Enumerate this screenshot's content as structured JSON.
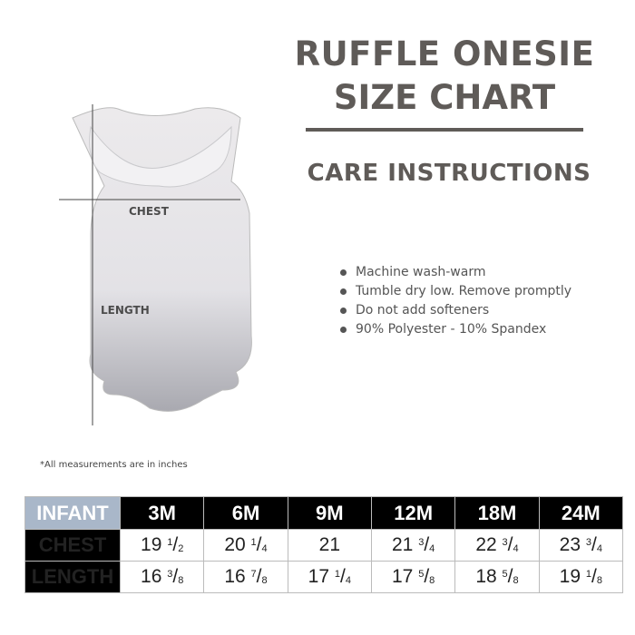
{
  "header": {
    "title_line1": "RUFFLE ONESIE",
    "title_line2": "SIZE CHART",
    "care_heading": "CARE INSTRUCTIONS"
  },
  "care_items": [
    "Machine wash-warm",
    "Tumble dry low. Remove promptly",
    "Do not add softeners",
    "90% Polyester - 10% Spandex"
  ],
  "garment": {
    "chest_label": "CHEST",
    "length_label": "LENGTH"
  },
  "note": "*All measurements are in inches",
  "table": {
    "corner": "INFANT",
    "sizes": [
      "3M",
      "6M",
      "9M",
      "12M",
      "18M",
      "24M"
    ],
    "rows": [
      {
        "label": "CHEST",
        "values": [
          {
            "whole": "19",
            "num": "1",
            "den": "2"
          },
          {
            "whole": "20",
            "num": "1",
            "den": "4"
          },
          {
            "whole": "21",
            "num": "",
            "den": ""
          },
          {
            "whole": "21",
            "num": "3",
            "den": "4"
          },
          {
            "whole": "22",
            "num": "3",
            "den": "4"
          },
          {
            "whole": "23",
            "num": "3",
            "den": "4"
          }
        ]
      },
      {
        "label": "LENGTH",
        "values": [
          {
            "whole": "16",
            "num": "3",
            "den": "8"
          },
          {
            "whole": "16",
            "num": "7",
            "den": "8"
          },
          {
            "whole": "17",
            "num": "1",
            "den": "4"
          },
          {
            "whole": "17",
            "num": "5",
            "den": "8"
          },
          {
            "whole": "18",
            "num": "5",
            "den": "8"
          },
          {
            "whole": "19",
            "num": "1",
            "den": "8"
          }
        ]
      }
    ]
  },
  "colors": {
    "title": "#5f5b58",
    "corner_bg": "#a9b7c9",
    "header_bg": "#000000"
  }
}
